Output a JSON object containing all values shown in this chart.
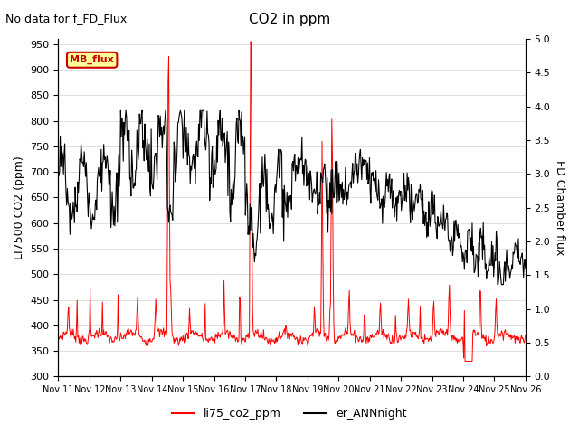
{
  "title": "CO2 in ppm",
  "subtitle": "No data for f_FD_Flux",
  "ylabel_left": "LI7500 CO2 (ppm)",
  "ylabel_right": "FD Chamber flux",
  "ylim_left": [
    300,
    960
  ],
  "ylim_right": [
    0.0,
    5.0
  ],
  "yticks_left": [
    300,
    350,
    400,
    450,
    500,
    550,
    600,
    650,
    700,
    750,
    800,
    850,
    900,
    950
  ],
  "yticks_right": [
    0.0,
    0.5,
    1.0,
    1.5,
    2.0,
    2.5,
    3.0,
    3.5,
    4.0,
    4.5,
    5.0
  ],
  "xtick_labels": [
    "Nov 11",
    "Nov 12",
    "Nov 13",
    "Nov 14",
    "Nov 15",
    "Nov 16",
    "Nov 17",
    "Nov 18",
    "Nov 19",
    "Nov 20",
    "Nov 21",
    "Nov 22",
    "Nov 23",
    "Nov 24",
    "Nov 25",
    "Nov 26"
  ],
  "color_red": "#ff0000",
  "color_black": "#000000",
  "legend_labels": [
    "li75_co2_ppm",
    "er_ANNnight"
  ],
  "mb_flux_color": "#cc0000",
  "mb_flux_bg": "#ffff99",
  "background_color": "#ffffff",
  "grid_color": "#e0e0e0"
}
